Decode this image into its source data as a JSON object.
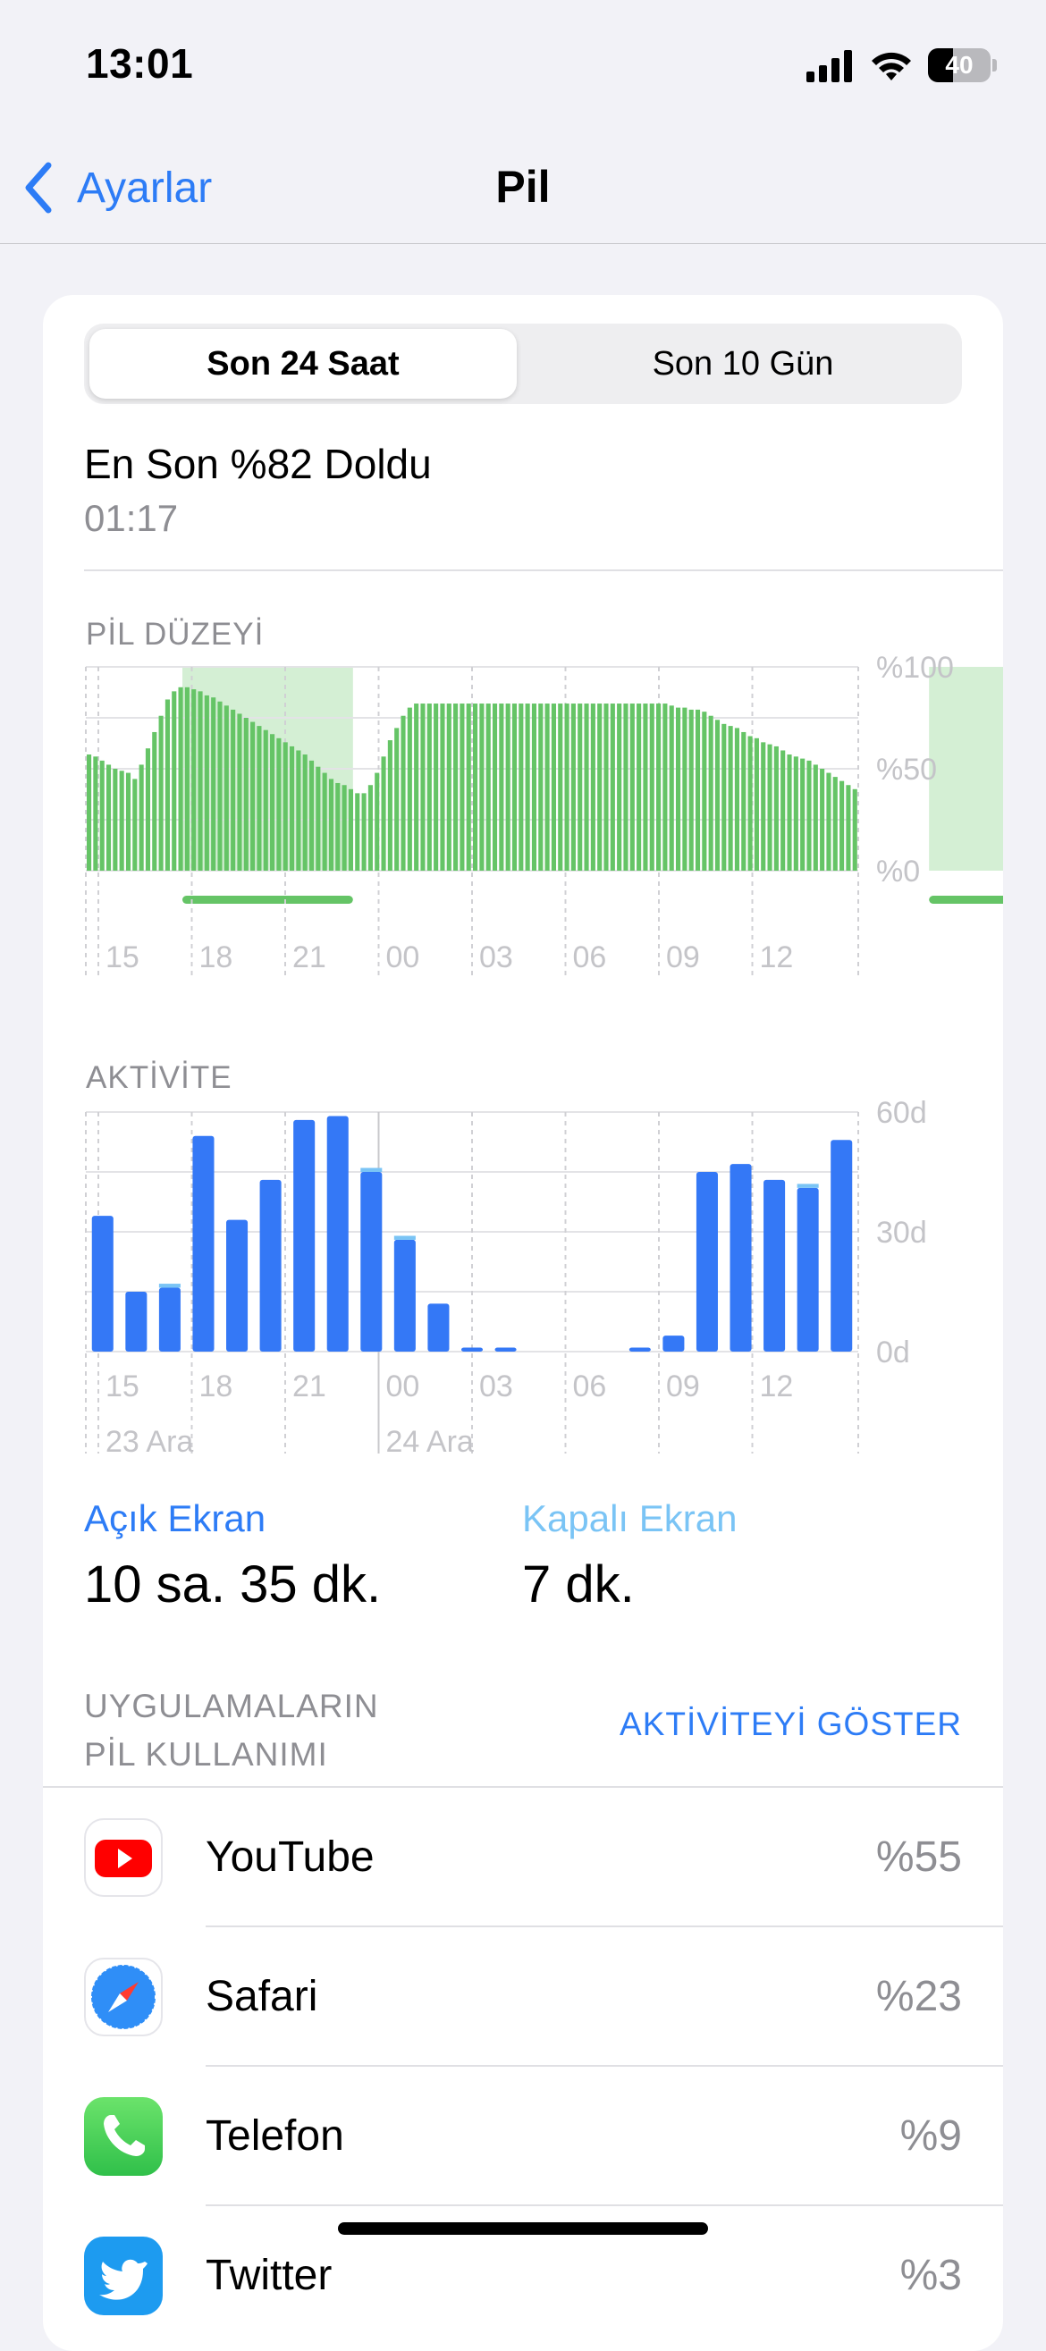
{
  "status_bar": {
    "time": "13:01",
    "battery_level": "40"
  },
  "nav": {
    "back_label": "Ayarlar",
    "title": "Pil"
  },
  "segment": {
    "options": [
      "Son 24 Saat",
      "Son 10 Gün"
    ],
    "selected": 0
  },
  "last_charge": {
    "text": "En Son %82 Doldu",
    "time": "01:17"
  },
  "colors": {
    "accent": "#2d7cf6",
    "battery_green": "#65c466",
    "charging_band": "#d4efd4",
    "activity_blue": "#3478f6",
    "screen_off": "#7ac4f5"
  },
  "chart_data": [
    {
      "type": "bar",
      "title": "PİL DÜZEYİ",
      "y_tick_labels": [
        "%100",
        "%50",
        "%0"
      ],
      "x_tick_labels": [
        "15",
        "18",
        "21",
        "00",
        "03",
        "06",
        "09",
        "12"
      ],
      "ylim": [
        0,
        100
      ],
      "unit": "percent",
      "values": [
        57,
        56,
        54,
        52,
        50,
        49,
        48,
        45,
        52,
        60,
        68,
        76,
        84,
        88,
        90,
        90,
        89,
        88,
        86,
        85,
        83,
        81,
        79,
        77,
        75,
        73,
        71,
        69,
        67,
        65,
        63,
        61,
        59,
        57,
        54,
        51,
        48,
        45,
        43,
        42,
        40,
        38,
        38,
        42,
        48,
        56,
        64,
        70,
        76,
        80,
        82,
        82,
        82,
        82,
        82,
        82,
        82,
        82,
        82,
        82,
        82,
        82,
        82,
        82,
        82,
        82,
        82,
        82,
        82,
        82,
        82,
        82,
        82,
        82,
        82,
        82,
        82,
        82,
        82,
        82,
        82,
        82,
        82,
        82,
        82,
        82,
        82,
        82,
        82,
        81,
        80,
        80,
        79,
        79,
        78,
        76,
        74,
        72,
        71,
        70,
        68,
        66,
        65,
        63,
        62,
        61,
        59,
        57,
        56,
        55,
        54,
        52,
        50,
        48,
        46,
        44,
        42,
        40
      ],
      "charging_periods": [
        [
          3,
          8.3
        ],
        [
          26.2,
          31
        ]
      ]
    },
    {
      "type": "bar",
      "title": "AKTİVİTE",
      "y_tick_labels": [
        "60d",
        "30d",
        "0d"
      ],
      "x_tick_labels": [
        "15",
        "18",
        "21",
        "00",
        "03",
        "06",
        "09",
        "12"
      ],
      "date_labels": [
        "23 Ara",
        "24 Ara"
      ],
      "ylim": [
        0,
        60
      ],
      "unit": "minutes",
      "series": [
        {
          "name": "Açık Ekran",
          "values": [
            34,
            15,
            16,
            54,
            33,
            43,
            58,
            59,
            45,
            28,
            12,
            1,
            1,
            0,
            0,
            0,
            1,
            4,
            45,
            47,
            43,
            41,
            53
          ]
        },
        {
          "name": "Kapalı Ekran",
          "values": [
            0,
            0,
            1,
            0,
            0,
            0,
            0,
            0,
            1,
            1,
            0,
            0,
            0,
            0,
            0,
            0,
            0,
            0,
            0,
            0,
            0,
            1,
            0
          ]
        }
      ]
    }
  ],
  "screen_usage": {
    "on": {
      "label": "Açık Ekran",
      "value": "10 sa. 35 dk."
    },
    "off": {
      "label": "Kapalı Ekran",
      "value": "7 dk."
    }
  },
  "apps": {
    "header_line1": "UYGULAMALARIN",
    "header_line2": "PİL KULLANIMI",
    "show_activity": "AKTİVİTEYİ GÖSTER",
    "items": [
      {
        "name": "YouTube",
        "percent": "%55",
        "icon": "youtube-icon"
      },
      {
        "name": "Safari",
        "percent": "%23",
        "icon": "safari-icon"
      },
      {
        "name": "Telefon",
        "percent": "%9",
        "icon": "phone-icon"
      },
      {
        "name": "Twitter",
        "percent": "%3",
        "icon": "twitter-icon"
      }
    ]
  }
}
